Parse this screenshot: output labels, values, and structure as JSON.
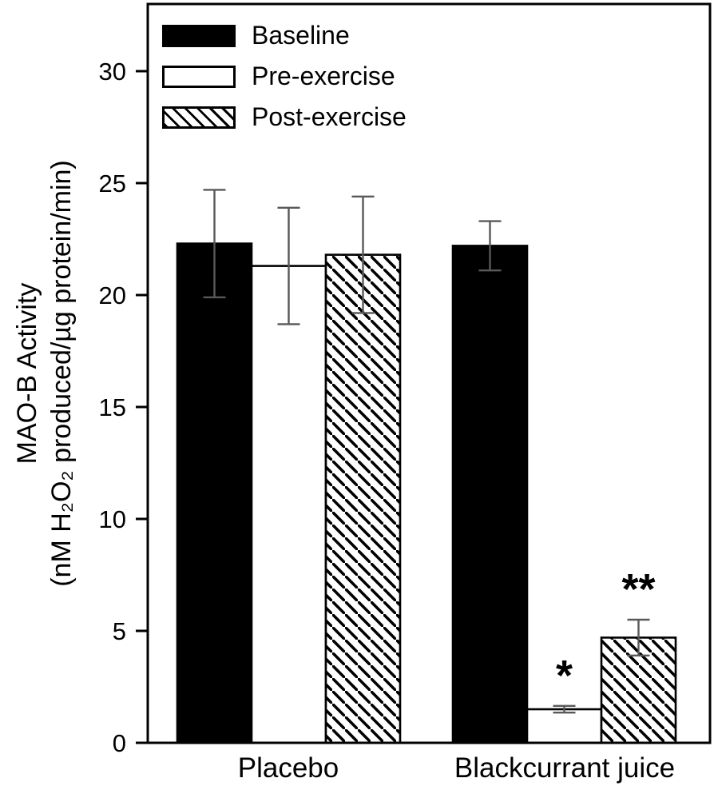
{
  "figure": {
    "background": "#ffffff"
  },
  "chart_data": {
    "type": "bar",
    "title": "",
    "ylabel_line1": "MAO-B Activity",
    "ylabel_line2": "(nM H₂O₂ produced/µg protein/min)",
    "xlabel": "",
    "categories": [
      "Placebo",
      "Blackcurrant juice"
    ],
    "series": [
      {
        "name": "Baseline",
        "style": "solid-black",
        "values": [
          22.3,
          22.2
        ],
        "errors": [
          2.4,
          1.1
        ],
        "annotations": [
          "",
          ""
        ]
      },
      {
        "name": "Pre-exercise",
        "style": "open-white",
        "values": [
          21.3,
          1.5
        ],
        "errors": [
          2.6,
          0.15
        ],
        "annotations": [
          "",
          "*"
        ]
      },
      {
        "name": "Post-exercise",
        "style": "hatched",
        "values": [
          21.8,
          4.7
        ],
        "errors": [
          2.6,
          0.8
        ],
        "annotations": [
          "",
          "**"
        ]
      }
    ],
    "ylim": [
      0,
      33
    ],
    "yticks": [
      0,
      5,
      10,
      15,
      20,
      25,
      30
    ],
    "grid": false,
    "legend_position": "top-left-inside",
    "colors": {
      "bar_fill_black": "#000000",
      "bar_fill_white": "#ffffff",
      "bar_edge": "#000000",
      "error_bar": "#595959",
      "frame": "#000000",
      "text": "#000000"
    }
  }
}
